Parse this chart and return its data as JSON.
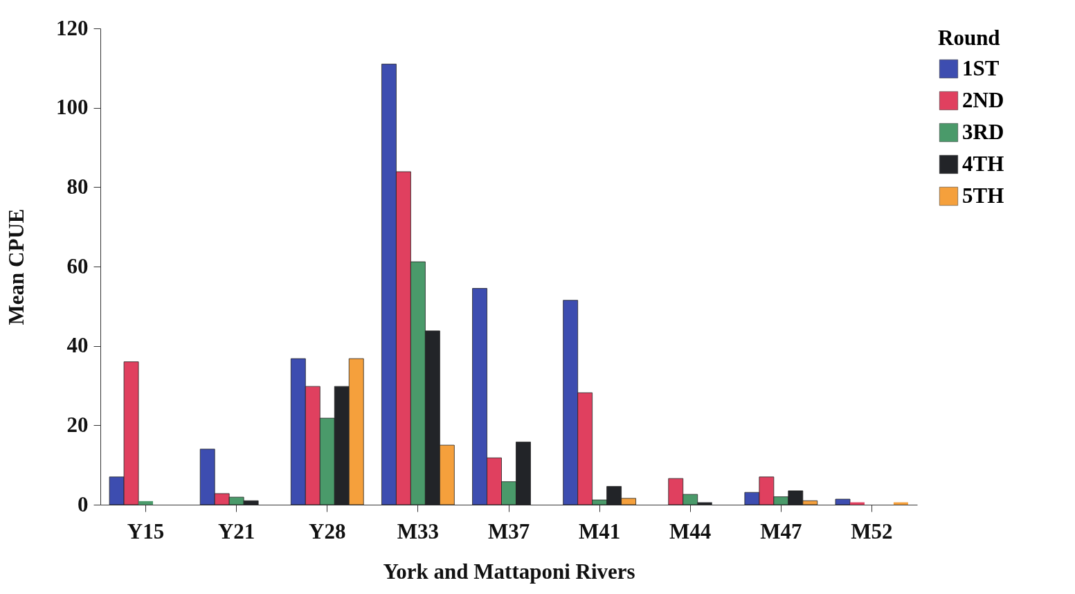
{
  "chart_data": {
    "type": "bar",
    "xlabel": "York and Mattaponi Rivers",
    "ylabel": "Mean CPUE",
    "legend_title": "Round",
    "categories": [
      "Y15",
      "Y21",
      "Y28",
      "M33",
      "M37",
      "M41",
      "M44",
      "M47",
      "M52"
    ],
    "series": [
      {
        "name": "1ST",
        "color": "#3d4db0",
        "values": [
          7,
          14,
          36.8,
          111,
          54.5,
          51.5,
          0,
          3.1,
          1.4
        ]
      },
      {
        "name": "2ND",
        "color": "#e0405f",
        "values": [
          36,
          2.8,
          29.8,
          83.9,
          11.8,
          28.2,
          6.6,
          7,
          0.6
        ]
      },
      {
        "name": "3RD",
        "color": "#4a9a6a",
        "values": [
          0.9,
          1.9,
          21.8,
          61.2,
          5.8,
          1.2,
          2.6,
          2,
          0
        ]
      },
      {
        "name": "4TH",
        "color": "#222428",
        "values": [
          0,
          1,
          29.8,
          43.8,
          15.8,
          4.6,
          0.6,
          3.5,
          0
        ]
      },
      {
        "name": "5TH",
        "color": "#f5a03c",
        "values": [
          0,
          0,
          36.8,
          15,
          0,
          1.6,
          0,
          1,
          0.6
        ]
      }
    ],
    "ylim": [
      0,
      120
    ],
    "yticks": [
      0,
      20,
      40,
      60,
      80,
      100,
      120
    ],
    "grid": false,
    "legend": "right"
  }
}
